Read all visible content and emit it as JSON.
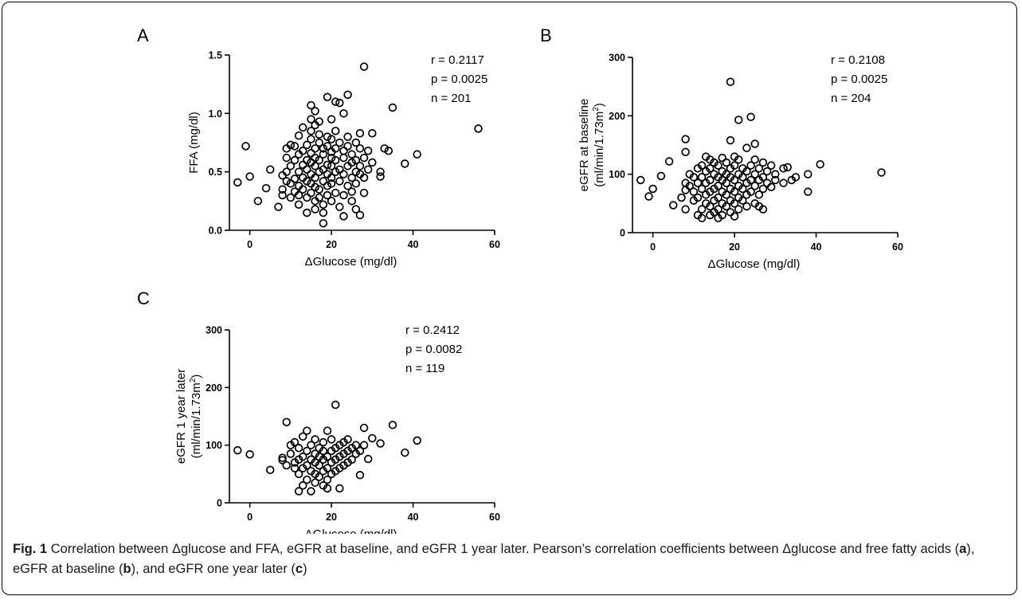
{
  "chart_data": [
    {
      "type": "scatter",
      "panel": "A",
      "xlabel": "ΔGlucose (mg/dl)",
      "ylabel": "FFA (mg/dl)",
      "ylabel2": "",
      "xlim": [
        -5,
        60
      ],
      "ylim": [
        0,
        1.5
      ],
      "xticks": [
        0,
        20,
        40,
        60
      ],
      "yticks": [
        0,
        0.5,
        1.0,
        1.5
      ],
      "ytick_labels": [
        "0.0",
        "0.5",
        "1.0",
        "1.5"
      ],
      "stats": [
        "r = 0.2117",
        "p = 0.0025",
        "n = 201"
      ],
      "points": [
        [
          -3,
          0.41
        ],
        [
          -1,
          0.72
        ],
        [
          0,
          0.46
        ],
        [
          2,
          0.25
        ],
        [
          4,
          0.36
        ],
        [
          5,
          0.52
        ],
        [
          7,
          0.2
        ],
        [
          8,
          0.3
        ],
        [
          8,
          0.35
        ],
        [
          8,
          0.47
        ],
        [
          9,
          0.5
        ],
        [
          9,
          0.42
        ],
        [
          9,
          0.62
        ],
        [
          9,
          0.7
        ],
        [
          10,
          0.73
        ],
        [
          10,
          0.4
        ],
        [
          10,
          0.28
        ],
        [
          10,
          0.55
        ],
        [
          11,
          0.44
        ],
        [
          11,
          0.33
        ],
        [
          11,
          0.6
        ],
        [
          11,
          0.72
        ],
        [
          12,
          0.38
        ],
        [
          12,
          0.5
        ],
        [
          12,
          0.65
        ],
        [
          12,
          0.81
        ],
        [
          12,
          0.3
        ],
        [
          12,
          0.22
        ],
        [
          13,
          0.45
        ],
        [
          13,
          0.56
        ],
        [
          13,
          0.68
        ],
        [
          13,
          0.88
        ],
        [
          13,
          0.35
        ],
        [
          14,
          0.28
        ],
        [
          14,
          0.42
        ],
        [
          14,
          0.52
        ],
        [
          14,
          0.6
        ],
        [
          14,
          0.73
        ],
        [
          14,
          0.15
        ],
        [
          15,
          0.95
        ],
        [
          15,
          1.07
        ],
        [
          15,
          0.32
        ],
        [
          15,
          0.4
        ],
        [
          15,
          0.48
        ],
        [
          15,
          0.58
        ],
        [
          15,
          0.66
        ],
        [
          15,
          0.78
        ],
        [
          15,
          0.85
        ],
        [
          16,
          0.18
        ],
        [
          16,
          0.25
        ],
        [
          16,
          1.02
        ],
        [
          16,
          0.37
        ],
        [
          16,
          0.45
        ],
        [
          16,
          0.55
        ],
        [
          16,
          0.62
        ],
        [
          16,
          0.7
        ],
        [
          16,
          0.9
        ],
        [
          17,
          0.28
        ],
        [
          17,
          0.35
        ],
        [
          17,
          0.5
        ],
        [
          17,
          0.6
        ],
        [
          17,
          0.75
        ],
        [
          17,
          0.82
        ],
        [
          17,
          0.93
        ],
        [
          18,
          0.15
        ],
        [
          18,
          0.42
        ],
        [
          18,
          0.52
        ],
        [
          18,
          0.65
        ],
        [
          18,
          0.7
        ],
        [
          18,
          0.22
        ],
        [
          18,
          0.06
        ],
        [
          19,
          1.14
        ],
        [
          19,
          0.3
        ],
        [
          19,
          0.38
        ],
        [
          19,
          0.48
        ],
        [
          19,
          0.56
        ],
        [
          19,
          0.72
        ],
        [
          19,
          0.8
        ],
        [
          20,
          0.25
        ],
        [
          20,
          0.4
        ],
        [
          20,
          0.55
        ],
        [
          20,
          0.62
        ],
        [
          20,
          0.67
        ],
        [
          20,
          0.45
        ],
        [
          20,
          0.78
        ],
        [
          20,
          0.95
        ],
        [
          21,
          1.1
        ],
        [
          21,
          0.32
        ],
        [
          21,
          0.5
        ],
        [
          21,
          0.6
        ],
        [
          21,
          0.7
        ],
        [
          21,
          0.85
        ],
        [
          22,
          0.2
        ],
        [
          22,
          0.42
        ],
        [
          22,
          0.52
        ],
        [
          22,
          0.75
        ],
        [
          22,
          1.09
        ],
        [
          23,
          0.3
        ],
        [
          23,
          0.48
        ],
        [
          23,
          0.62
        ],
        [
          23,
          0.68
        ],
        [
          23,
          1.0
        ],
        [
          23,
          0.12
        ],
        [
          24,
          0.38
        ],
        [
          24,
          0.55
        ],
        [
          24,
          0.8
        ],
        [
          24,
          1.16
        ],
        [
          24,
          0.72
        ],
        [
          25,
          0.25
        ],
        [
          25,
          0.45
        ],
        [
          25,
          0.58
        ],
        [
          25,
          0.65
        ],
        [
          25,
          0.33
        ],
        [
          26,
          0.4
        ],
        [
          26,
          0.5
        ],
        [
          26,
          0.6
        ],
        [
          26,
          0.75
        ],
        [
          26,
          0.18
        ],
        [
          27,
          0.13
        ],
        [
          27,
          0.48
        ],
        [
          27,
          0.55
        ],
        [
          27,
          0.7
        ],
        [
          27,
          0.83
        ],
        [
          28,
          1.4
        ],
        [
          28,
          0.32
        ],
        [
          28,
          0.45
        ],
        [
          28,
          0.62
        ],
        [
          29,
          0.52
        ],
        [
          29,
          0.68
        ],
        [
          30,
          0.83
        ],
        [
          30,
          0.58
        ],
        [
          32,
          0.46
        ],
        [
          32,
          0.5
        ],
        [
          33,
          0.7
        ],
        [
          34,
          0.68
        ],
        [
          35,
          1.05
        ],
        [
          38,
          0.57
        ],
        [
          41,
          0.65
        ],
        [
          56,
          0.87
        ]
      ]
    },
    {
      "type": "scatter",
      "panel": "B",
      "xlabel": "ΔGlucose (mg/dl)",
      "ylabel": "eGFR at baseline",
      "ylabel2": "(ml/min/1.73m",
      "xlim": [
        -5,
        60
      ],
      "ylim": [
        0,
        300
      ],
      "xticks": [
        0,
        20,
        40,
        60
      ],
      "yticks": [
        0,
        100,
        200,
        300
      ],
      "ytick_labels": [
        "0",
        "100",
        "200",
        "300"
      ],
      "stats": [
        "r = 0.2108",
        "p = 0.0025",
        "n = 204"
      ],
      "points": [
        [
          -3,
          90
        ],
        [
          -1,
          62
        ],
        [
          0,
          75
        ],
        [
          2,
          97
        ],
        [
          4,
          122
        ],
        [
          5,
          47
        ],
        [
          7,
          60
        ],
        [
          8,
          40
        ],
        [
          8,
          73
        ],
        [
          8,
          85
        ],
        [
          8,
          160
        ],
        [
          8,
          138
        ],
        [
          9,
          80
        ],
        [
          9,
          100
        ],
        [
          10,
          70
        ],
        [
          10,
          95
        ],
        [
          10,
          55
        ],
        [
          11,
          85
        ],
        [
          11,
          110
        ],
        [
          11,
          30
        ],
        [
          11,
          60
        ],
        [
          12,
          40
        ],
        [
          12,
          75
        ],
        [
          12,
          95
        ],
        [
          12,
          115
        ],
        [
          12,
          25
        ],
        [
          13,
          50
        ],
        [
          13,
          65
        ],
        [
          13,
          85
        ],
        [
          13,
          105
        ],
        [
          13,
          130
        ],
        [
          14,
          30
        ],
        [
          14,
          45
        ],
        [
          14,
          70
        ],
        [
          14,
          90
        ],
        [
          14,
          110
        ],
        [
          14,
          125
        ],
        [
          15,
          35
        ],
        [
          15,
          55
        ],
        [
          15,
          75
        ],
        [
          15,
          100
        ],
        [
          15,
          120
        ],
        [
          16,
          25
        ],
        [
          16,
          40
        ],
        [
          16,
          60
        ],
        [
          16,
          80
        ],
        [
          16,
          95
        ],
        [
          16,
          115
        ],
        [
          17,
          30
        ],
        [
          17,
          50
        ],
        [
          17,
          70
        ],
        [
          17,
          90
        ],
        [
          17,
          105
        ],
        [
          17,
          128
        ],
        [
          18,
          45
        ],
        [
          18,
          65
        ],
        [
          18,
          85
        ],
        [
          18,
          100
        ],
        [
          18,
          120
        ],
        [
          19,
          258
        ],
        [
          19,
          35
        ],
        [
          19,
          55
        ],
        [
          19,
          75
        ],
        [
          19,
          95
        ],
        [
          19,
          110
        ],
        [
          19,
          158
        ],
        [
          20,
          28
        ],
        [
          20,
          50
        ],
        [
          20,
          70
        ],
        [
          20,
          90
        ],
        [
          20,
          115
        ],
        [
          20,
          130
        ],
        [
          21,
          193
        ],
        [
          21,
          40
        ],
        [
          21,
          60
        ],
        [
          21,
          80
        ],
        [
          21,
          100
        ],
        [
          21,
          125
        ],
        [
          22,
          55
        ],
        [
          22,
          75
        ],
        [
          22,
          95
        ],
        [
          22,
          110
        ],
        [
          23,
          45
        ],
        [
          23,
          65
        ],
        [
          23,
          85
        ],
        [
          23,
          105
        ],
        [
          23,
          145
        ],
        [
          24,
          198
        ],
        [
          24,
          70
        ],
        [
          24,
          90
        ],
        [
          24,
          115
        ],
        [
          25,
          50
        ],
        [
          25,
          80
        ],
        [
          25,
          100
        ],
        [
          25,
          125
        ],
        [
          25,
          152
        ],
        [
          26,
          65
        ],
        [
          26,
          90
        ],
        [
          26,
          110
        ],
        [
          26,
          45
        ],
        [
          27,
          40
        ],
        [
          27,
          75
        ],
        [
          27,
          95
        ],
        [
          27,
          120
        ],
        [
          28,
          85
        ],
        [
          28,
          105
        ],
        [
          29,
          78
        ],
        [
          29,
          115
        ],
        [
          30,
          100
        ],
        [
          30,
          90
        ],
        [
          32,
          85
        ],
        [
          32,
          110
        ],
        [
          33,
          112
        ],
        [
          34,
          90
        ],
        [
          35,
          95
        ],
        [
          38,
          100
        ],
        [
          38,
          70
        ],
        [
          41,
          117
        ],
        [
          56,
          103
        ]
      ]
    },
    {
      "type": "scatter",
      "panel": "C",
      "xlabel": "ΔGlucose (mg/dl)",
      "ylabel": "eGFR 1 year later",
      "ylabel2": "(ml/min/1.73m",
      "xlim": [
        -5,
        60
      ],
      "ylim": [
        0,
        300
      ],
      "xticks": [
        0,
        20,
        40,
        60
      ],
      "yticks": [
        0,
        100,
        200,
        300
      ],
      "ytick_labels": [
        "0",
        "100",
        "200",
        "300"
      ],
      "stats": [
        "r = 0.2412",
        "p = 0.0082",
        "n = 119"
      ],
      "points": [
        [
          -3,
          91
        ],
        [
          0,
          84
        ],
        [
          5,
          57
        ],
        [
          8,
          78
        ],
        [
          8,
          74
        ],
        [
          9,
          140
        ],
        [
          9,
          65
        ],
        [
          10,
          85
        ],
        [
          10,
          100
        ],
        [
          11,
          60
        ],
        [
          11,
          70
        ],
        [
          11,
          105
        ],
        [
          12,
          20
        ],
        [
          12,
          50
        ],
        [
          12,
          75
        ],
        [
          12,
          95
        ],
        [
          13,
          30
        ],
        [
          13,
          60
        ],
        [
          13,
          80
        ],
        [
          13,
          115
        ],
        [
          14,
          40
        ],
        [
          14,
          65
        ],
        [
          14,
          90
        ],
        [
          14,
          125
        ],
        [
          15,
          20
        ],
        [
          15,
          55
        ],
        [
          15,
          75
        ],
        [
          15,
          100
        ],
        [
          16,
          35
        ],
        [
          16,
          50
        ],
        [
          16,
          70
        ],
        [
          16,
          85
        ],
        [
          16,
          110
        ],
        [
          17,
          45
        ],
        [
          17,
          65
        ],
        [
          17,
          80
        ],
        [
          17,
          95
        ],
        [
          18,
          30
        ],
        [
          18,
          55
        ],
        [
          18,
          75
        ],
        [
          18,
          90
        ],
        [
          18,
          105
        ],
        [
          19,
          25
        ],
        [
          19,
          40
        ],
        [
          19,
          60
        ],
        [
          19,
          80
        ],
        [
          19,
          125
        ],
        [
          20,
          50
        ],
        [
          20,
          70
        ],
        [
          20,
          90
        ],
        [
          20,
          110
        ],
        [
          21,
          170
        ],
        [
          21,
          55
        ],
        [
          21,
          75
        ],
        [
          21,
          95
        ],
        [
          22,
          25
        ],
        [
          22,
          60
        ],
        [
          22,
          80
        ],
        [
          22,
          100
        ],
        [
          23,
          65
        ],
        [
          23,
          85
        ],
        [
          23,
          105
        ],
        [
          24,
          70
        ],
        [
          24,
          90
        ],
        [
          24,
          110
        ],
        [
          25,
          75
        ],
        [
          25,
          95
        ],
        [
          26,
          85
        ],
        [
          26,
          100
        ],
        [
          27,
          48
        ],
        [
          27,
          90
        ],
        [
          28,
          130
        ],
        [
          28,
          100
        ],
        [
          29,
          76
        ],
        [
          30,
          112
        ],
        [
          32,
          103
        ],
        [
          35,
          135
        ],
        [
          38,
          87
        ],
        [
          41,
          108
        ]
      ]
    }
  ],
  "caption": {
    "fig_label": "Fig. 1",
    "title": "Correlation between Δglucose and FFA, eGFR at baseline, and eGFR 1 year later.",
    "body_1": "Pearson’s correlation coefficients between Δglucose and free fatty acids (",
    "ref_a": "a",
    "body_2": "), eGFR at baseline (",
    "ref_b": "b",
    "body_3": "), and eGFR one year later (",
    "ref_c": "c",
    "body_4": ")"
  }
}
